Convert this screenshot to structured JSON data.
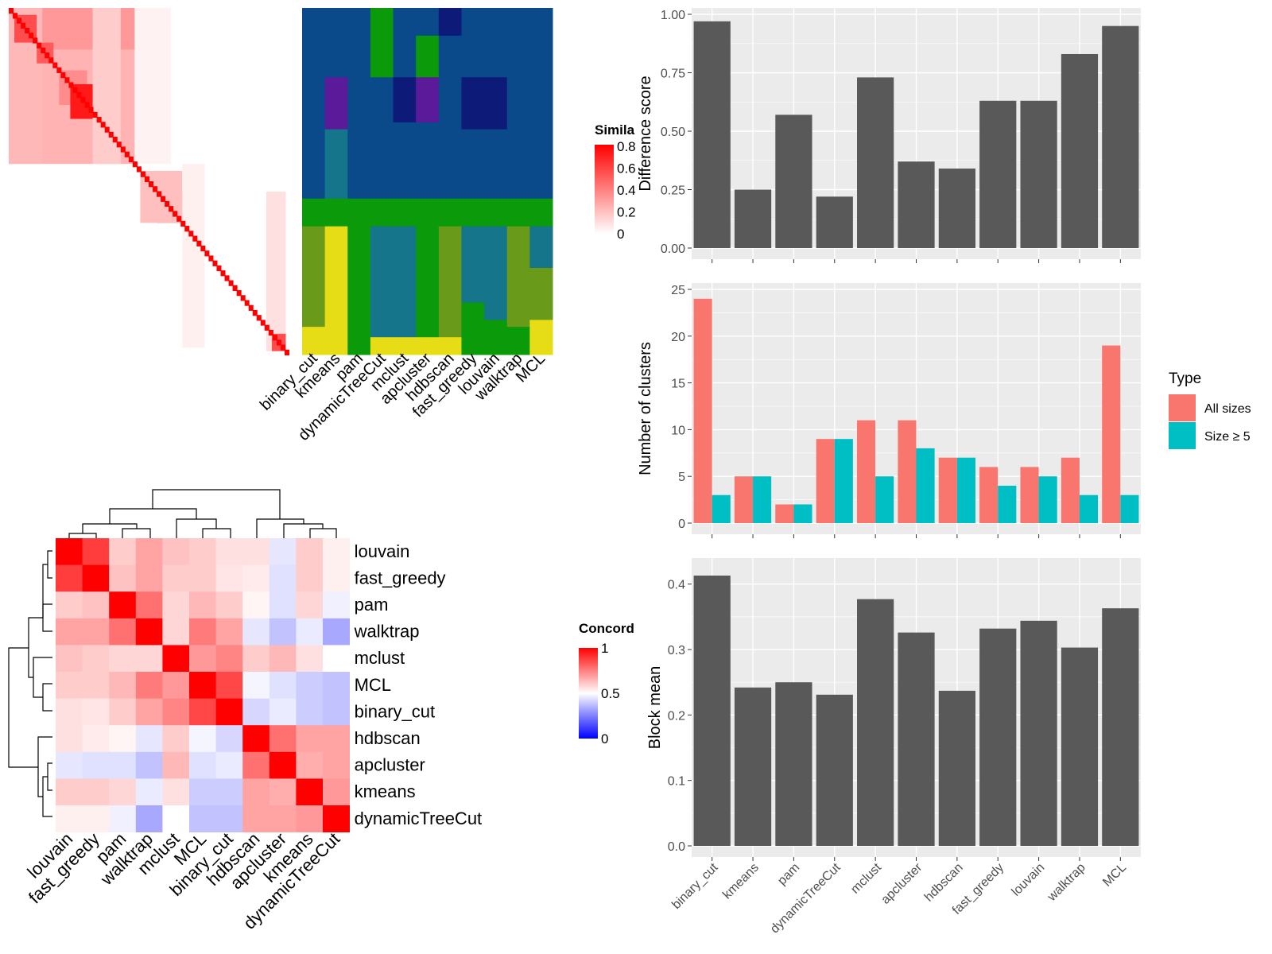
{
  "colors": {
    "panel_bg": "#ebebeb",
    "grid": "#ffffff",
    "bar": "#595959",
    "all_sizes": "#f8766d",
    "size_ge_5": "#00bfc4",
    "heat_red": "#ff0000",
    "heat_white": "#ffffff",
    "heat_blue": "#0000ff"
  },
  "similarity_legend": {
    "title": "Simila",
    "ticks": [
      "0",
      "0.2",
      "0.4",
      "0.6",
      "0.8"
    ]
  },
  "concordance_legend": {
    "title": "Concord",
    "ticks": [
      "0",
      "0.5",
      "1"
    ]
  },
  "cluster_matrix": {
    "columns": [
      "binary_cut",
      "kmeans",
      "pam",
      "dynamicTreeCut",
      "mclust",
      "apcluster",
      "hdbscan",
      "fast_greedy",
      "louvain",
      "walktrap",
      "MCL"
    ]
  },
  "concordance": {
    "rows": [
      "louvain",
      "fast_greedy",
      "pam",
      "walktrap",
      "mclust",
      "MCL",
      "binary_cut",
      "hdbscan",
      "apcluster",
      "kmeans",
      "dynamicTreeCut"
    ],
    "columns": [
      "louvain",
      "fast_greedy",
      "pam",
      "walktrap",
      "mclust",
      "MCL",
      "binary_cut",
      "hdbscan",
      "apcluster",
      "kmeans",
      "dynamicTreeCut"
    ],
    "values": [
      [
        1.0,
        0.88,
        0.6,
        0.68,
        0.62,
        0.6,
        0.56,
        0.56,
        0.45,
        0.6,
        0.53
      ],
      [
        0.88,
        1.0,
        0.62,
        0.68,
        0.6,
        0.6,
        0.55,
        0.54,
        0.44,
        0.6,
        0.53
      ],
      [
        0.6,
        0.62,
        1.0,
        0.78,
        0.58,
        0.64,
        0.6,
        0.52,
        0.44,
        0.58,
        0.47
      ],
      [
        0.68,
        0.68,
        0.78,
        1.0,
        0.58,
        0.76,
        0.68,
        0.45,
        0.38,
        0.46,
        0.33
      ],
      [
        0.62,
        0.6,
        0.58,
        0.58,
        1.0,
        0.7,
        0.74,
        0.6,
        0.64,
        0.56,
        0.5
      ],
      [
        0.6,
        0.6,
        0.64,
        0.76,
        0.7,
        1.0,
        0.86,
        0.48,
        0.44,
        0.4,
        0.38
      ],
      [
        0.56,
        0.55,
        0.6,
        0.68,
        0.74,
        0.86,
        1.0,
        0.42,
        0.46,
        0.4,
        0.38
      ],
      [
        0.56,
        0.54,
        0.52,
        0.45,
        0.6,
        0.48,
        0.42,
        1.0,
        0.78,
        0.68,
        0.68
      ],
      [
        0.45,
        0.44,
        0.44,
        0.38,
        0.64,
        0.44,
        0.46,
        0.78,
        1.0,
        0.66,
        0.68
      ],
      [
        0.6,
        0.6,
        0.58,
        0.46,
        0.56,
        0.4,
        0.4,
        0.68,
        0.66,
        1.0,
        0.7
      ],
      [
        0.53,
        0.53,
        0.47,
        0.33,
        0.5,
        0.38,
        0.38,
        0.68,
        0.68,
        0.7,
        1.0
      ]
    ]
  },
  "chart_data": [
    {
      "type": "bar",
      "ylabel": "Difference score",
      "ylim": [
        0,
        1.0
      ],
      "yticks": [
        "0.00",
        "0.25",
        "0.50",
        "0.75",
        "1.00"
      ],
      "categories": [
        "binary_cut",
        "kmeans",
        "pam",
        "dynamicTreeCut",
        "mclust",
        "apcluster",
        "hdbscan",
        "fast_greedy",
        "louvain",
        "walktrap",
        "MCL"
      ],
      "values": [
        0.97,
        0.25,
        0.57,
        0.22,
        0.73,
        0.37,
        0.34,
        0.63,
        0.63,
        0.83,
        0.95
      ]
    },
    {
      "type": "bar",
      "ylabel": "Number of clusters",
      "ylim": [
        0,
        25
      ],
      "yticks": [
        "0",
        "5",
        "10",
        "15",
        "20",
        "25"
      ],
      "categories": [
        "binary_cut",
        "kmeans",
        "pam",
        "dynamicTreeCut",
        "mclust",
        "apcluster",
        "hdbscan",
        "fast_greedy",
        "louvain",
        "walktrap",
        "MCL"
      ],
      "legend_title": "Type",
      "series": [
        {
          "name": "All sizes",
          "values": [
            24,
            5,
            2,
            9,
            11,
            11,
            7,
            6,
            6,
            7,
            19
          ]
        },
        {
          "name": "Size ≥ 5",
          "values": [
            3,
            5,
            2,
            9,
            5,
            8,
            7,
            4,
            5,
            3,
            3
          ]
        }
      ]
    },
    {
      "type": "bar",
      "ylabel": "Block mean",
      "ylim": [
        0,
        0.43
      ],
      "yticks": [
        "0.0",
        "0.1",
        "0.2",
        "0.3",
        "0.4"
      ],
      "categories": [
        "binary_cut",
        "kmeans",
        "pam",
        "dynamicTreeCut",
        "mclust",
        "apcluster",
        "hdbscan",
        "fast_greedy",
        "louvain",
        "walktrap",
        "MCL"
      ],
      "values": [
        0.413,
        0.242,
        0.25,
        0.231,
        0.377,
        0.326,
        0.237,
        0.332,
        0.344,
        0.303,
        0.363
      ]
    }
  ]
}
